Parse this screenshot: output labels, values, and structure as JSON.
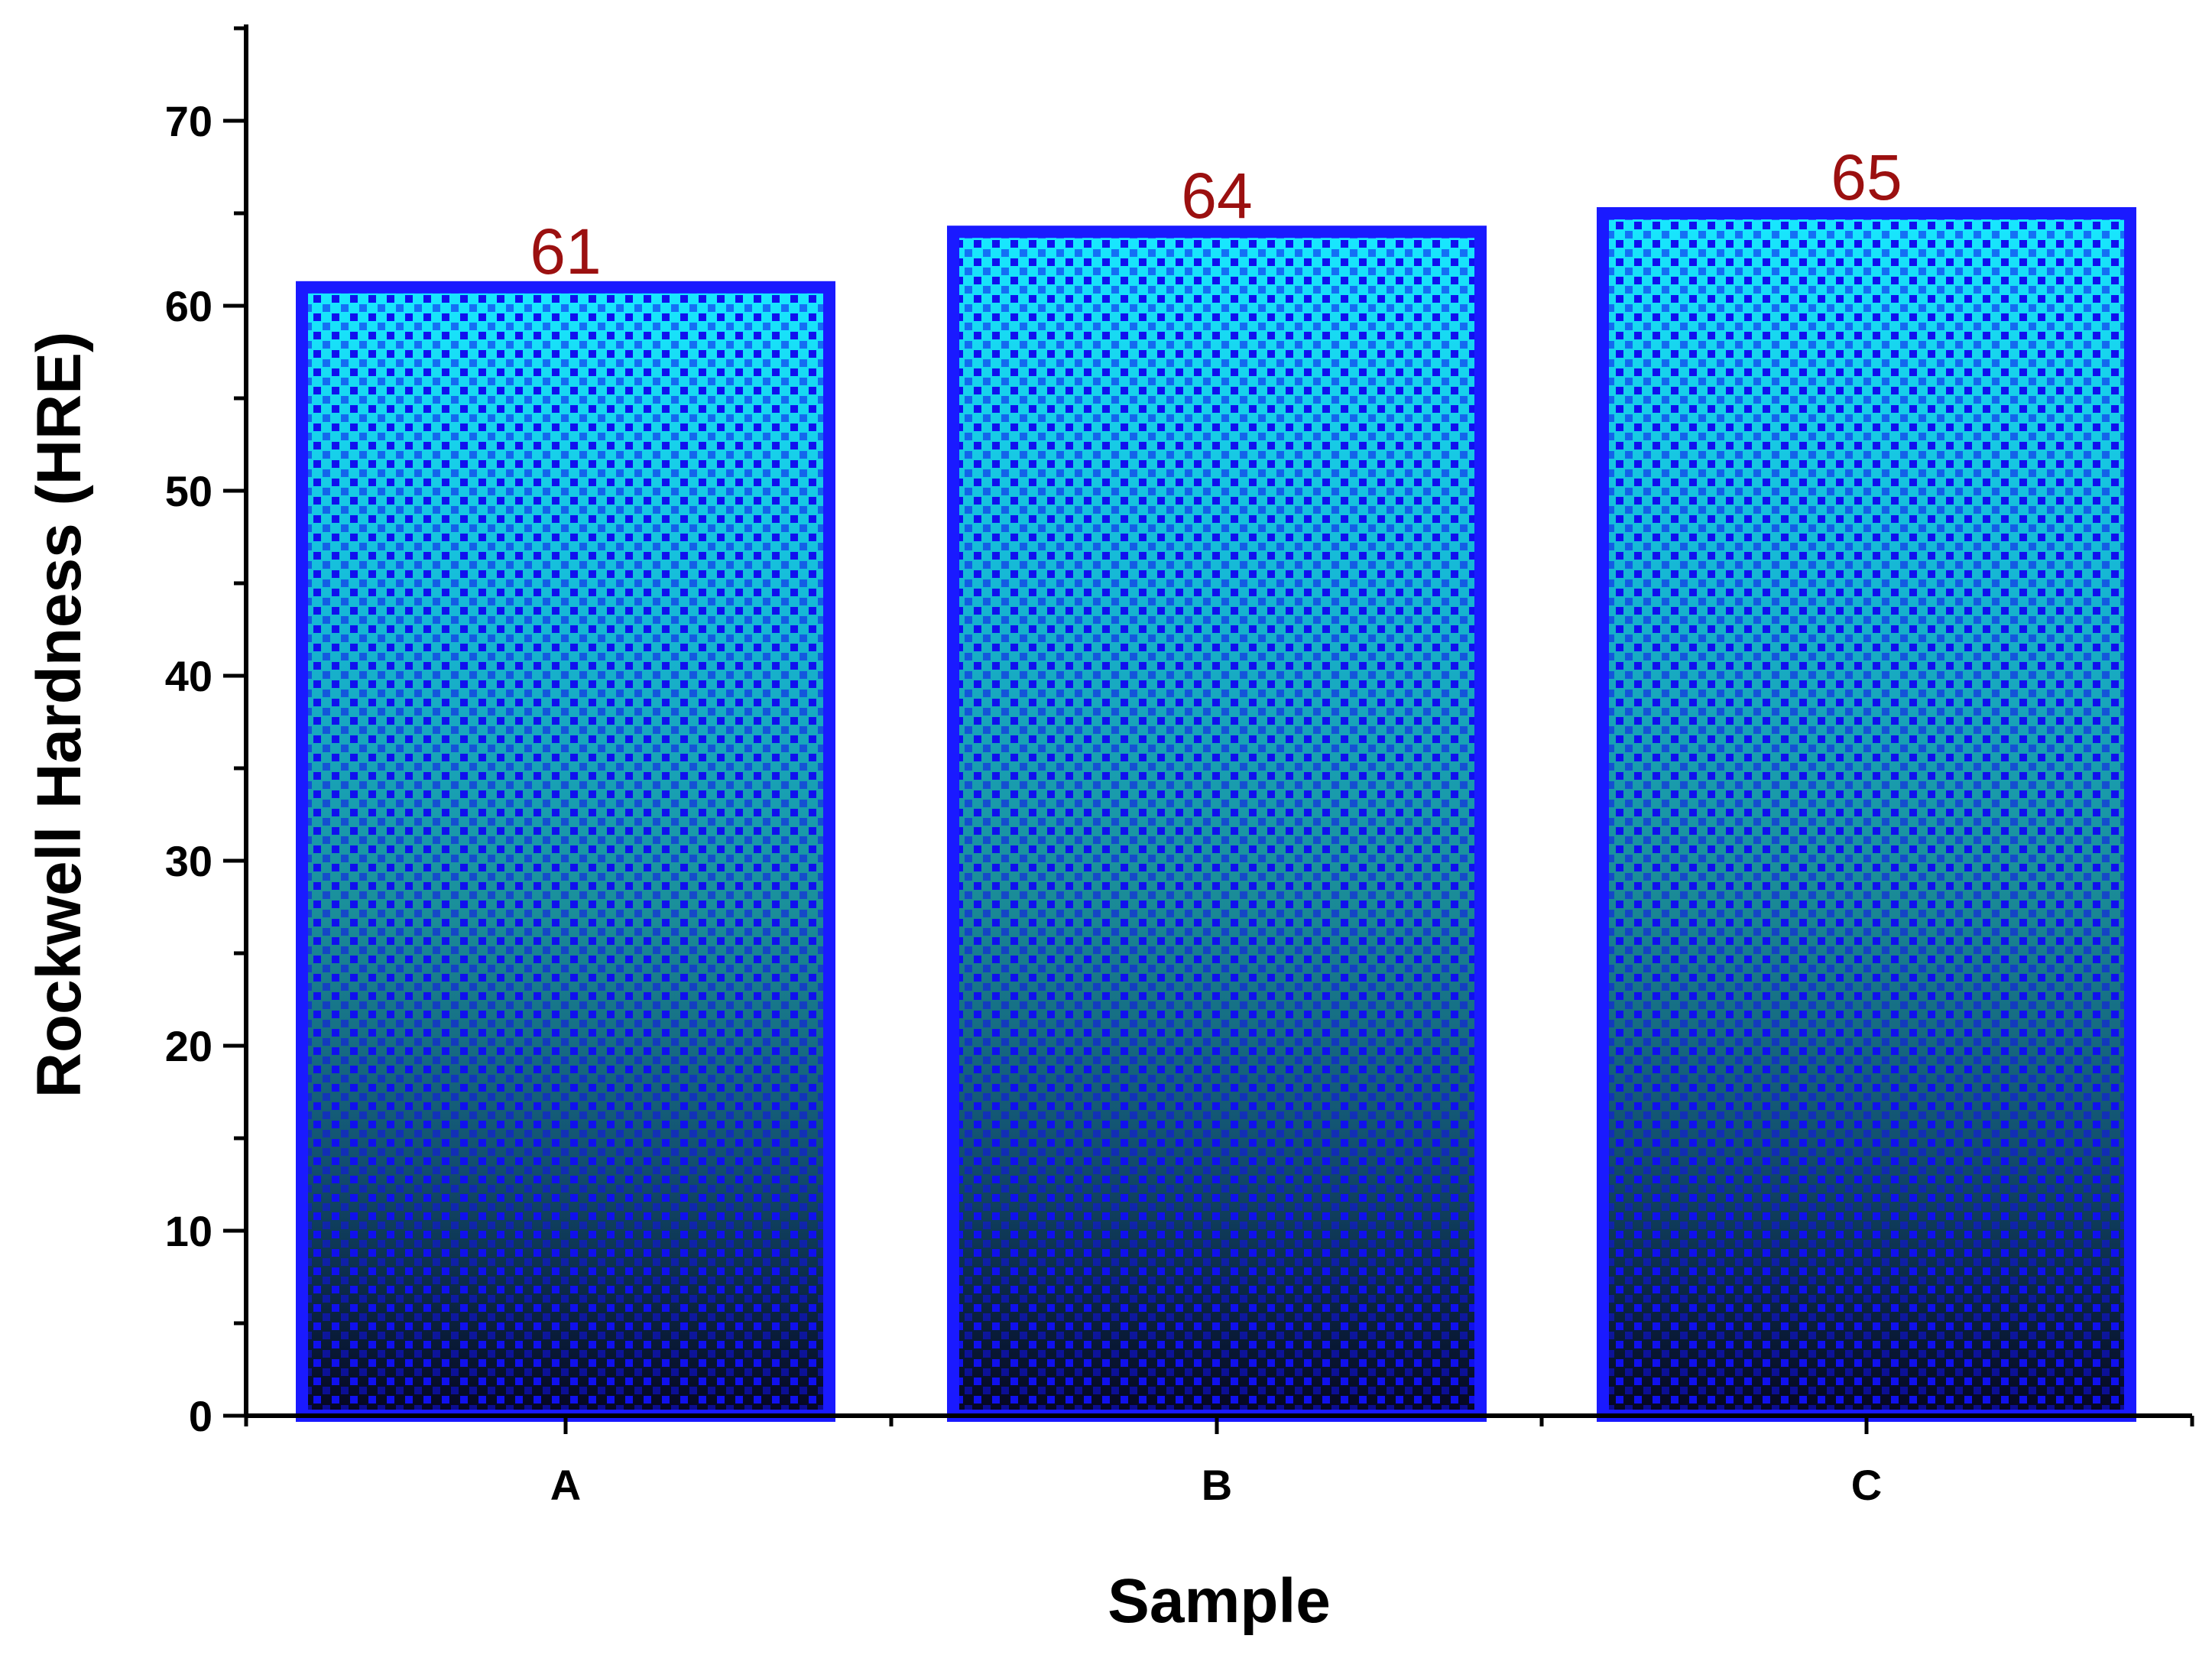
{
  "chart_data": {
    "type": "bar",
    "title": "",
    "xlabel": "Sample",
    "ylabel": "Rockwell Hardness (HRE)",
    "categories": [
      "A",
      "B",
      "C"
    ],
    "values": [
      61,
      64,
      65
    ],
    "data_labels": [
      "61",
      "64",
      "65"
    ],
    "ylim": [
      0,
      75
    ],
    "yticks": [
      0,
      10,
      20,
      30,
      40,
      50,
      60,
      70
    ],
    "ytick_labels": [
      "0",
      "10",
      "20",
      "30",
      "40",
      "50",
      "60",
      "70"
    ],
    "grid": false,
    "legend": "none",
    "colors": {
      "bar_border": "#1a1aff",
      "bar_fill_top": "#18e8ff",
      "bar_fill_middle": "#1a8f9a",
      "bar_fill_bottom": "#050520",
      "pattern_dot": "#1010ee",
      "data_label": "#9b1010",
      "axis": "#000000"
    }
  }
}
